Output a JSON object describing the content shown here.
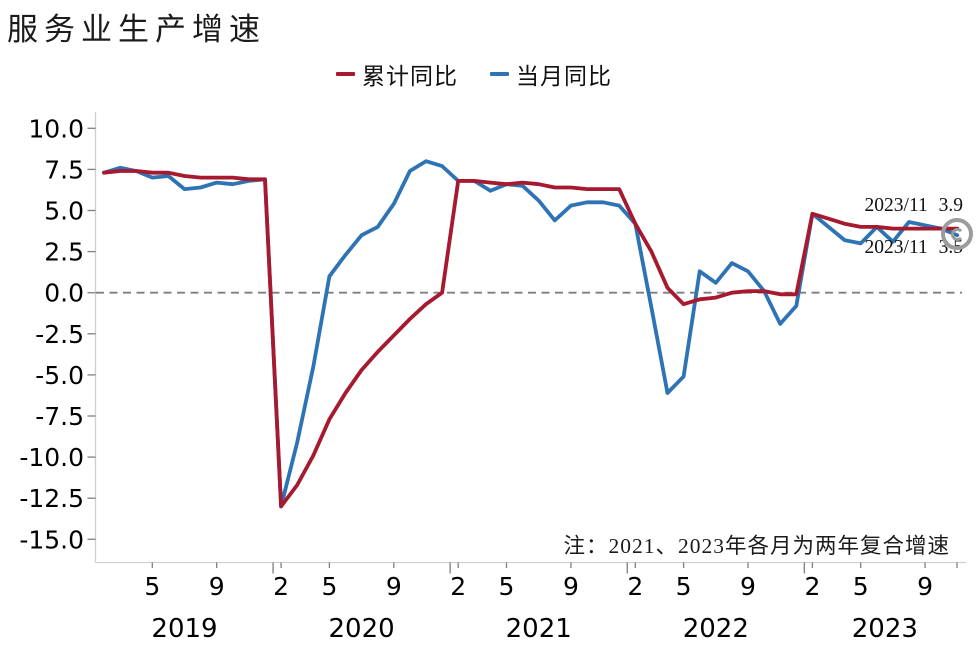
{
  "title": "服务业生产增速",
  "legend": [
    {
      "label": "累计同比",
      "color": "#A6192E"
    },
    {
      "label": "当月同比",
      "color": "#2E74B5"
    }
  ],
  "note": "注：2021、2023年各月为两年复合增速",
  "annotations": [
    {
      "text": "2023/11 3.9",
      "series": "累计同比"
    },
    {
      "text": "2023/11 3.5",
      "series": "当月同比"
    }
  ],
  "watermark_icon": "circled-c-watermark",
  "colors": {
    "cumulative_line": "#A6192E",
    "monthly_line": "#2E74B5",
    "zero_line": "#7f7f7f",
    "axis_line": "#cfcfcf",
    "tick_mark": "#7f7f7f",
    "text": "#000000"
  },
  "chart_data": {
    "type": "line",
    "title": "服务业生产增速",
    "xlabel": "",
    "ylabel": "",
    "ylim": [
      -15.0,
      10.0
    ],
    "grid": false,
    "legend_position": "top",
    "zero_line": "dashed",
    "y_ticks": [
      "10.0",
      "7.5",
      "5.0",
      "2.5",
      "0.0",
      "-2.5",
      "-5.0",
      "-7.5",
      "-10.0",
      "-12.5",
      "-15.0"
    ],
    "y_tick_values": [
      10.0,
      7.5,
      5.0,
      2.5,
      0.0,
      -2.5,
      -5.0,
      -7.5,
      -10.0,
      -12.5,
      -15.0
    ],
    "categories": [
      "2019/2",
      "2019/3",
      "2019/4",
      "2019/5",
      "2019/6",
      "2019/7",
      "2019/8",
      "2019/9",
      "2019/10",
      "2019/11",
      "2019/12",
      "2020/2",
      "2020/3",
      "2020/4",
      "2020/5",
      "2020/6",
      "2020/7",
      "2020/8",
      "2020/9",
      "2020/10",
      "2020/11",
      "2020/12",
      "2021/2",
      "2021/3",
      "2021/4",
      "2021/5",
      "2021/6",
      "2021/7",
      "2021/8",
      "2021/9",
      "2021/10",
      "2021/11",
      "2021/12",
      "2022/2",
      "2022/3",
      "2022/4",
      "2022/5",
      "2022/6",
      "2022/7",
      "2022/8",
      "2022/9",
      "2022/10",
      "2022/11",
      "2022/12",
      "2023/2",
      "2023/3",
      "2023/4",
      "2023/5",
      "2023/6",
      "2023/7",
      "2023/8",
      "2023/9",
      "2023/10",
      "2023/11"
    ],
    "series": [
      {
        "name": "累计同比",
        "color": "#A6192E",
        "values": [
          7.3,
          7.4,
          7.4,
          7.3,
          7.3,
          7.1,
          7.0,
          7.0,
          7.0,
          6.9,
          6.9,
          -13.0,
          -11.7,
          -9.9,
          -7.7,
          -6.1,
          -4.7,
          -3.6,
          -2.6,
          -1.6,
          -0.7,
          0.0,
          6.8,
          6.8,
          6.7,
          6.6,
          6.7,
          6.6,
          6.4,
          6.4,
          6.3,
          6.3,
          6.3,
          4.2,
          2.5,
          0.3,
          -0.7,
          -0.4,
          -0.3,
          0.0,
          0.1,
          0.1,
          -0.1,
          -0.1,
          4.8,
          4.5,
          4.2,
          4.0,
          4.0,
          3.9,
          3.9,
          3.9,
          3.9,
          3.9
        ]
      },
      {
        "name": "当月同比",
        "color": "#2E74B5",
        "values": [
          7.3,
          7.6,
          7.4,
          7.0,
          7.1,
          6.3,
          6.4,
          6.7,
          6.6,
          6.8,
          6.9,
          -13.0,
          -9.1,
          -4.5,
          1.0,
          2.3,
          3.5,
          4.0,
          5.4,
          7.4,
          8.0,
          7.7,
          6.8,
          6.8,
          6.2,
          6.6,
          6.5,
          5.6,
          4.4,
          5.3,
          5.5,
          5.5,
          5.3,
          4.2,
          -0.9,
          -6.1,
          -5.1,
          1.3,
          0.6,
          1.8,
          1.3,
          0.1,
          -1.9,
          -0.8,
          4.8,
          4.0,
          3.2,
          3.0,
          4.0,
          3.1,
          4.3,
          4.1,
          3.9,
          3.5
        ]
      }
    ],
    "x_month_ticks": [
      {
        "label": "5",
        "index": 3
      },
      {
        "label": "9",
        "index": 7
      },
      {
        "label": "2",
        "index": 11
      },
      {
        "label": "5",
        "index": 14
      },
      {
        "label": "9",
        "index": 18
      },
      {
        "label": "2",
        "index": 22
      },
      {
        "label": "5",
        "index": 25
      },
      {
        "label": "9",
        "index": 29
      },
      {
        "label": "2",
        "index": 33
      },
      {
        "label": "5",
        "index": 36
      },
      {
        "label": "9",
        "index": 40
      },
      {
        "label": "2",
        "index": 44
      },
      {
        "label": "5",
        "index": 47
      },
      {
        "label": "9",
        "index": 51
      }
    ],
    "x_year_labels": [
      {
        "label": "2019",
        "index": 5
      },
      {
        "label": "2020",
        "index": 16
      },
      {
        "label": "2021",
        "index": 27
      },
      {
        "label": "2022",
        "index": 38
      },
      {
        "label": "2023",
        "index": 48.5
      }
    ],
    "year_boundary_indices": [
      10.5,
      21.5,
      32.5,
      43.5
    ]
  }
}
